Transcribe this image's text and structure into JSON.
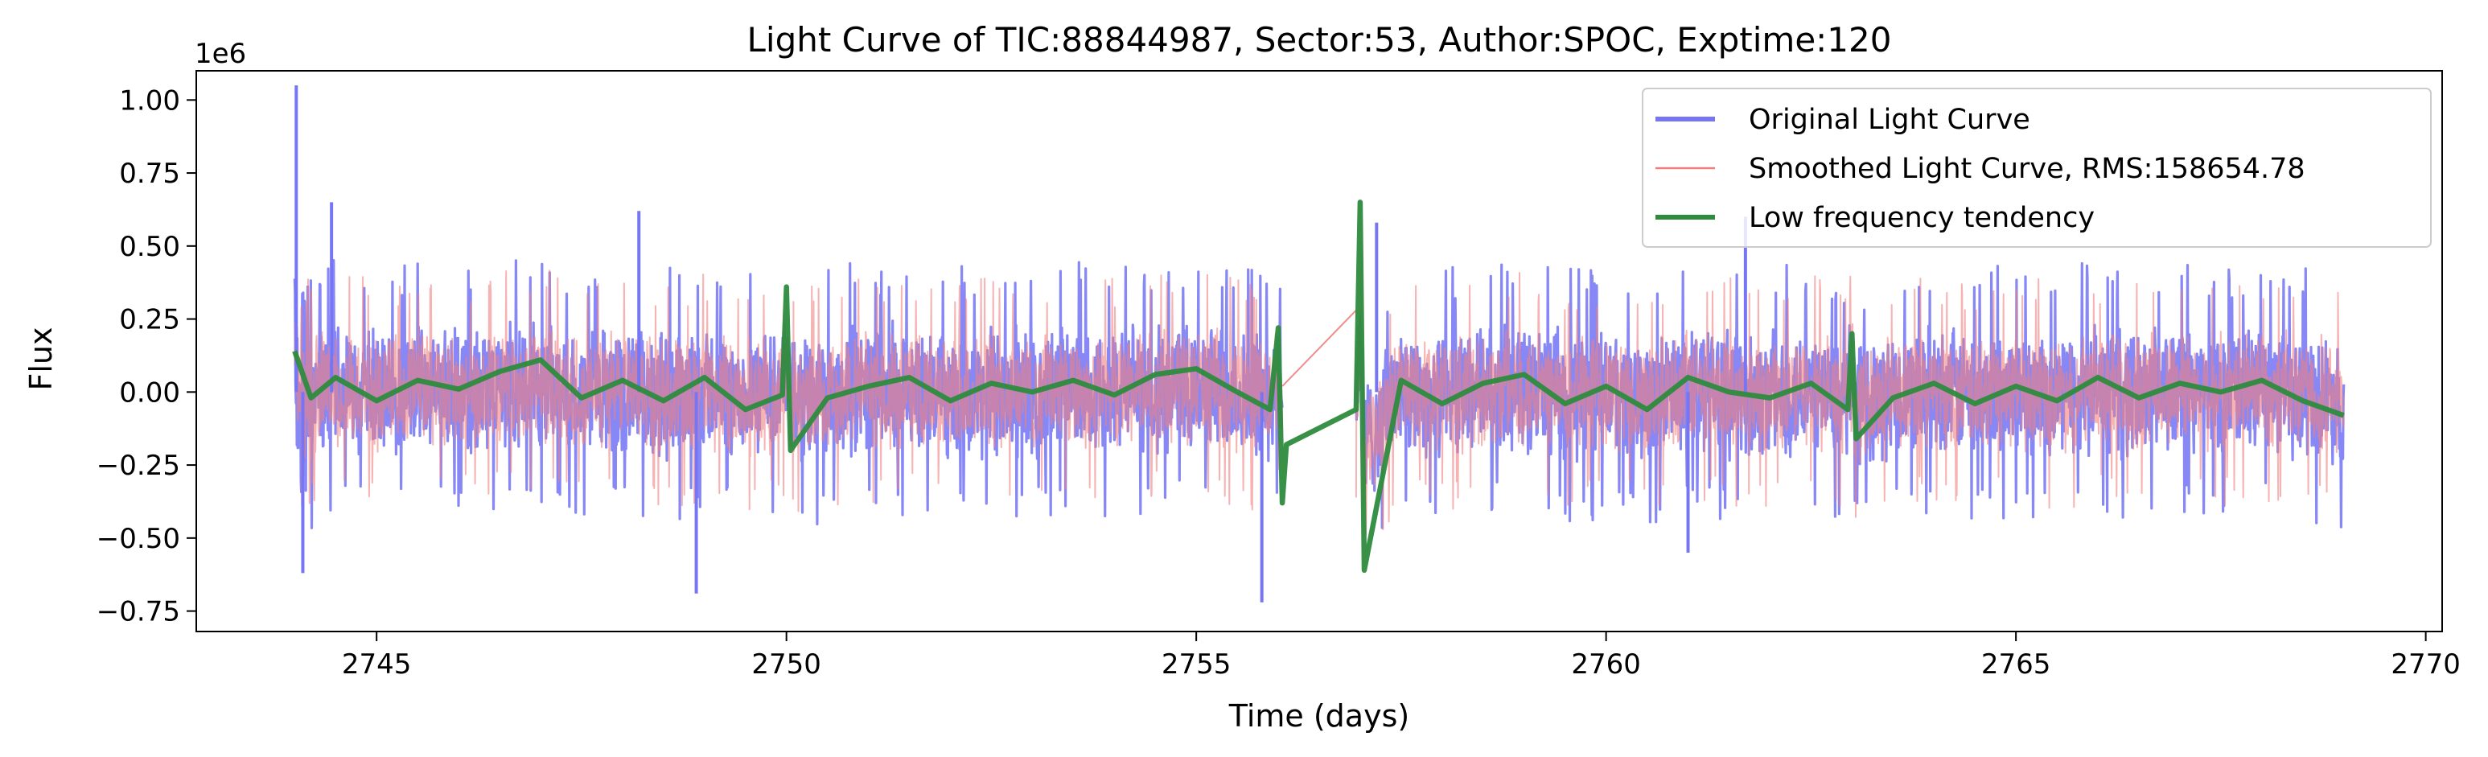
{
  "chart_data": {
    "type": "line",
    "title": "Light Curve of TIC:88844987, Sector:53, Author:SPOC, Exptime:120",
    "xlabel": "Time (days)",
    "ylabel": "Flux",
    "y_offset_label": "1e6",
    "xlim": [
      2742.8,
      2770.2
    ],
    "ylim": [
      -0.82,
      1.1
    ],
    "x_ticks": [
      2745,
      2750,
      2755,
      2760,
      2765,
      2770
    ],
    "x_tick_labels": [
      "2745",
      "2750",
      "2755",
      "2760",
      "2765",
      "2770"
    ],
    "y_ticks": [
      1.0,
      0.75,
      0.5,
      0.25,
      0.0,
      -0.25,
      -0.5,
      -0.75
    ],
    "y_tick_labels": [
      "1.00",
      "0.75",
      "0.50",
      "0.25",
      "0.00",
      "−0.25",
      "−0.50",
      "−0.75"
    ],
    "segments": [
      [
        2744.0,
        2756.05
      ],
      [
        2756.95,
        2769.0
      ]
    ],
    "legend_position": "upper-right",
    "grid": false,
    "series": [
      {
        "name": "Original Light Curve",
        "color": "#7676f4",
        "role": "original",
        "noise_amplitude": 0.2,
        "spike_high": [
          1.05,
          0.65,
          0.6,
          0.58,
          0.62
        ],
        "spike_low": [
          -0.69,
          -0.72,
          -0.62,
          -0.55
        ]
      },
      {
        "name": "Smoothed Light Curve, RMS:158654.78",
        "color": "#f08080",
        "role": "smoothed",
        "noise_amplitude": 0.18
      },
      {
        "name": "Low frequency tendency",
        "color": "#2e8b3e",
        "role": "trend",
        "x": [
          2744.0,
          2744.2,
          2744.5,
          2745.0,
          2745.5,
          2746.0,
          2746.5,
          2747.0,
          2747.5,
          2748.0,
          2748.5,
          2749.0,
          2749.5,
          2749.95,
          2750.0,
          2750.05,
          2750.5,
          2751.0,
          2751.5,
          2752.0,
          2752.5,
          2753.0,
          2753.5,
          2754.0,
          2754.5,
          2755.0,
          2755.5,
          2755.9,
          2756.0,
          2756.05,
          2756.1,
          2756.95,
          2757.0,
          2757.05,
          2757.5,
          2758.0,
          2758.5,
          2759.0,
          2759.5,
          2760.0,
          2760.5,
          2761.0,
          2761.5,
          2762.0,
          2762.5,
          2762.95,
          2763.0,
          2763.05,
          2763.5,
          2764.0,
          2764.5,
          2765.0,
          2765.5,
          2766.0,
          2766.5,
          2767.0,
          2767.5,
          2768.0,
          2768.5,
          2769.0
        ],
        "y": [
          0.14,
          -0.02,
          0.05,
          -0.03,
          0.04,
          0.01,
          0.07,
          0.11,
          -0.02,
          0.04,
          -0.03,
          0.05,
          -0.06,
          -0.01,
          0.36,
          -0.2,
          -0.02,
          0.02,
          0.05,
          -0.03,
          0.03,
          0.0,
          0.04,
          -0.01,
          0.06,
          0.08,
          0.0,
          -0.06,
          0.22,
          -0.38,
          -0.18,
          -0.06,
          0.65,
          -0.61,
          0.04,
          -0.04,
          0.03,
          0.06,
          -0.04,
          0.02,
          -0.06,
          0.05,
          0.0,
          -0.02,
          0.03,
          -0.06,
          0.2,
          -0.16,
          -0.02,
          0.03,
          -0.04,
          0.02,
          -0.03,
          0.05,
          -0.02,
          0.03,
          0.0,
          0.04,
          -0.03,
          -0.08
        ]
      }
    ]
  }
}
